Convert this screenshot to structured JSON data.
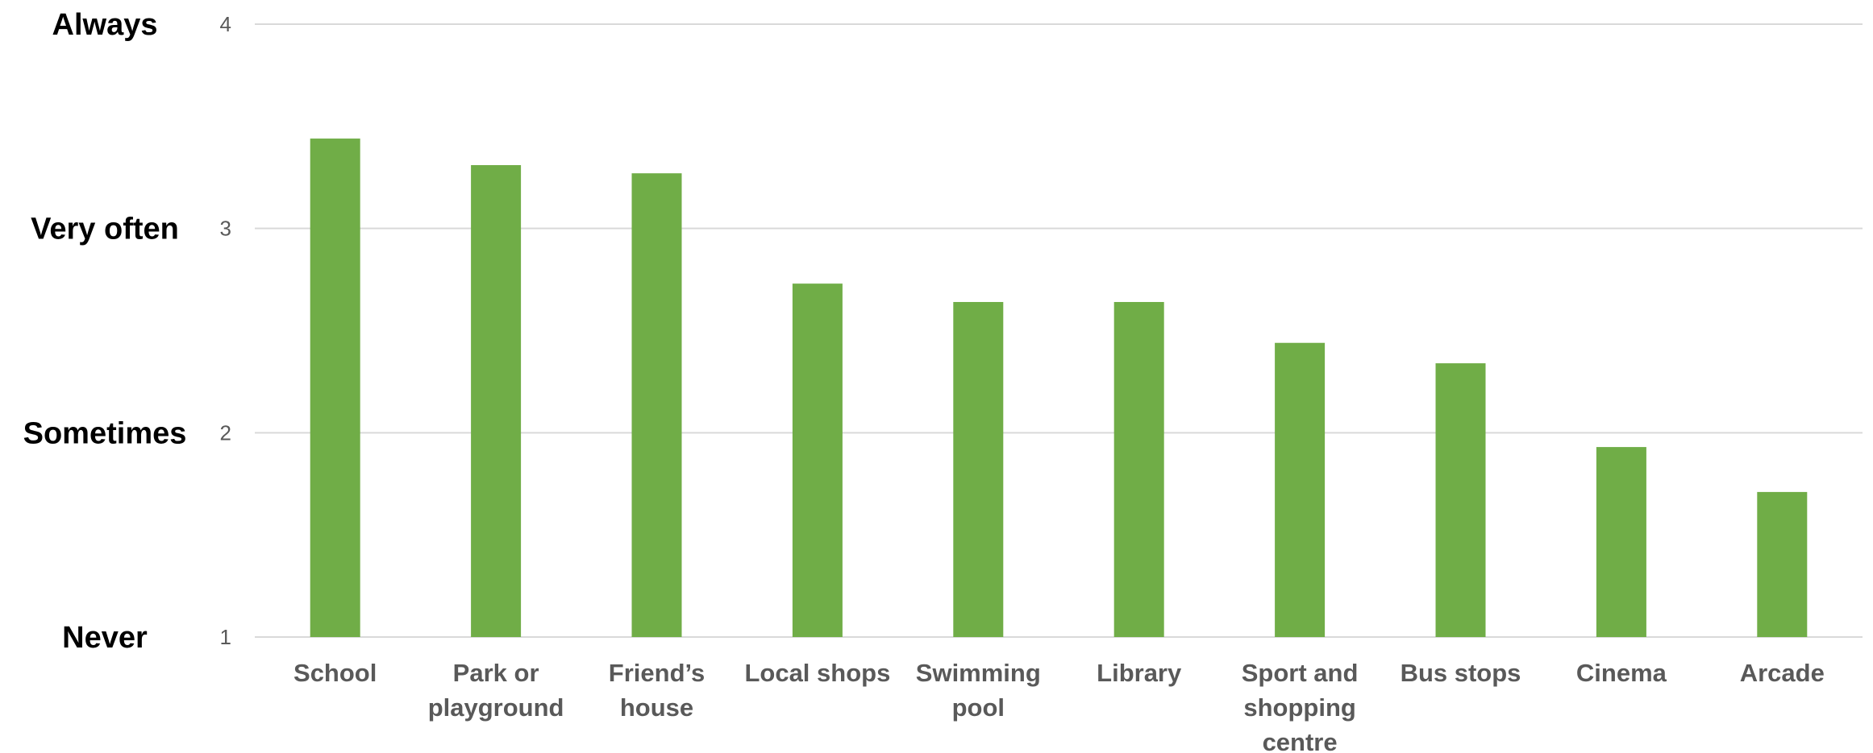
{
  "chart_data": {
    "type": "bar",
    "categories": [
      [
        "School"
      ],
      [
        "Park or",
        "playground"
      ],
      [
        "Friend’s",
        "house"
      ],
      [
        "Local shops"
      ],
      [
        "Swimming",
        "pool"
      ],
      [
        "Library"
      ],
      [
        "Sport and",
        "shopping",
        "centre"
      ],
      [
        "Bus stops"
      ],
      [
        "Cinema"
      ],
      [
        "Arcade"
      ]
    ],
    "values": [
      3.44,
      3.31,
      3.27,
      2.73,
      2.64,
      2.64,
      2.44,
      2.34,
      1.93,
      1.71
    ],
    "ylim": [
      1,
      4
    ],
    "yticks": [
      1,
      2,
      3,
      4
    ],
    "ylevel_labels": [
      {
        "value": 4,
        "label": "Always"
      },
      {
        "value": 3,
        "label": "Very often"
      },
      {
        "value": 2,
        "label": "Sometimes"
      },
      {
        "value": 1,
        "label": "Never"
      }
    ],
    "grid": true,
    "bar_color": "#70ad47",
    "grid_color": "#d9d9d9"
  }
}
